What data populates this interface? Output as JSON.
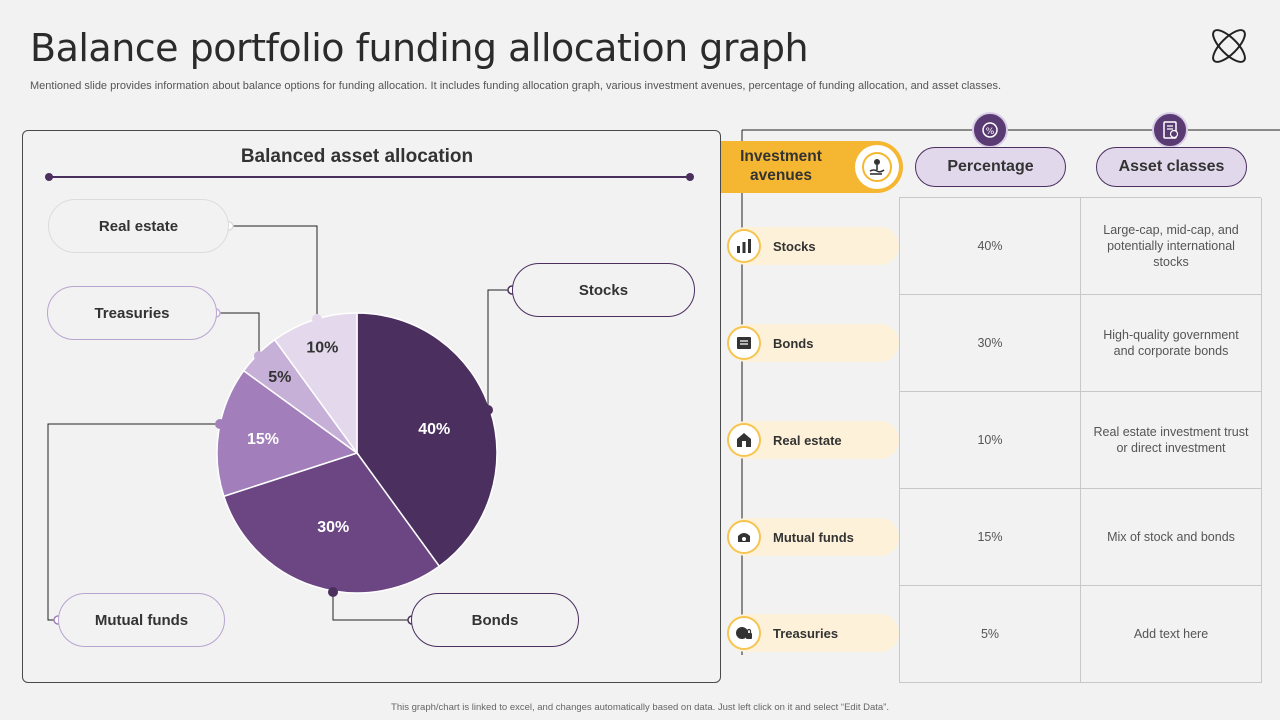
{
  "slide": {
    "title": "Balance portfolio funding allocation graph",
    "subtitle": "Mentioned slide provides information about balance options for funding allocation. It includes funding allocation graph, various investment avenues, percentage of funding allocation, and asset classes.",
    "footer": "This graph/chart is linked to excel, and changes automatically based on data. Just left click on it and select “Edit Data”.",
    "logo_icon": "atom-orbit-icon"
  },
  "chart_data": {
    "type": "pie",
    "title": "Balanced asset allocation",
    "slices": [
      {
        "label": "Stocks",
        "value": 40,
        "display": "40%",
        "color": "#4b2f5e"
      },
      {
        "label": "Bonds",
        "value": 30,
        "display": "30%",
        "color": "#6b4683"
      },
      {
        "label": "Mutual funds",
        "value": 15,
        "display": "15%",
        "color": "#a27fba"
      },
      {
        "label": "Treasuries",
        "value": 5,
        "display": "5%",
        "color": "#c6b0d8"
      },
      {
        "label": "Real estate",
        "value": 10,
        "display": "10%",
        "color": "#e3d8ec"
      }
    ]
  },
  "table": {
    "headers": {
      "avenues": "Investment avenues",
      "percentage": "Percentage",
      "asset_classes": "Asset classes"
    },
    "header_icons": [
      "investment-hand-icon",
      "percentage-badge-icon",
      "document-dollar-icon"
    ],
    "rows": [
      {
        "avenue": "Stocks",
        "icon": "stocks-icon",
        "percentage": "40%",
        "asset_class": "Large-cap, mid-cap, and potentially international stocks"
      },
      {
        "avenue": "Bonds",
        "icon": "bonds-icon",
        "percentage": "30%",
        "asset_class": "High-quality government and corporate bonds"
      },
      {
        "avenue": "Real estate",
        "icon": "real-estate-icon",
        "percentage": "10%",
        "asset_class": "Real estate investment trust or direct investment"
      },
      {
        "avenue": "Mutual funds",
        "icon": "mutual-funds-icon",
        "percentage": "15%",
        "asset_class": "Mix of stock and bonds"
      },
      {
        "avenue": "Treasuries",
        "icon": "treasuries-icon",
        "percentage": "5%",
        "asset_class": "Add text here"
      }
    ]
  },
  "colors": {
    "accent_purple": "#4b2f5e",
    "accent_yellow": "#f5b731",
    "avenue_bg": "#fdf2d9",
    "header_bg": "#e2d8ec"
  }
}
